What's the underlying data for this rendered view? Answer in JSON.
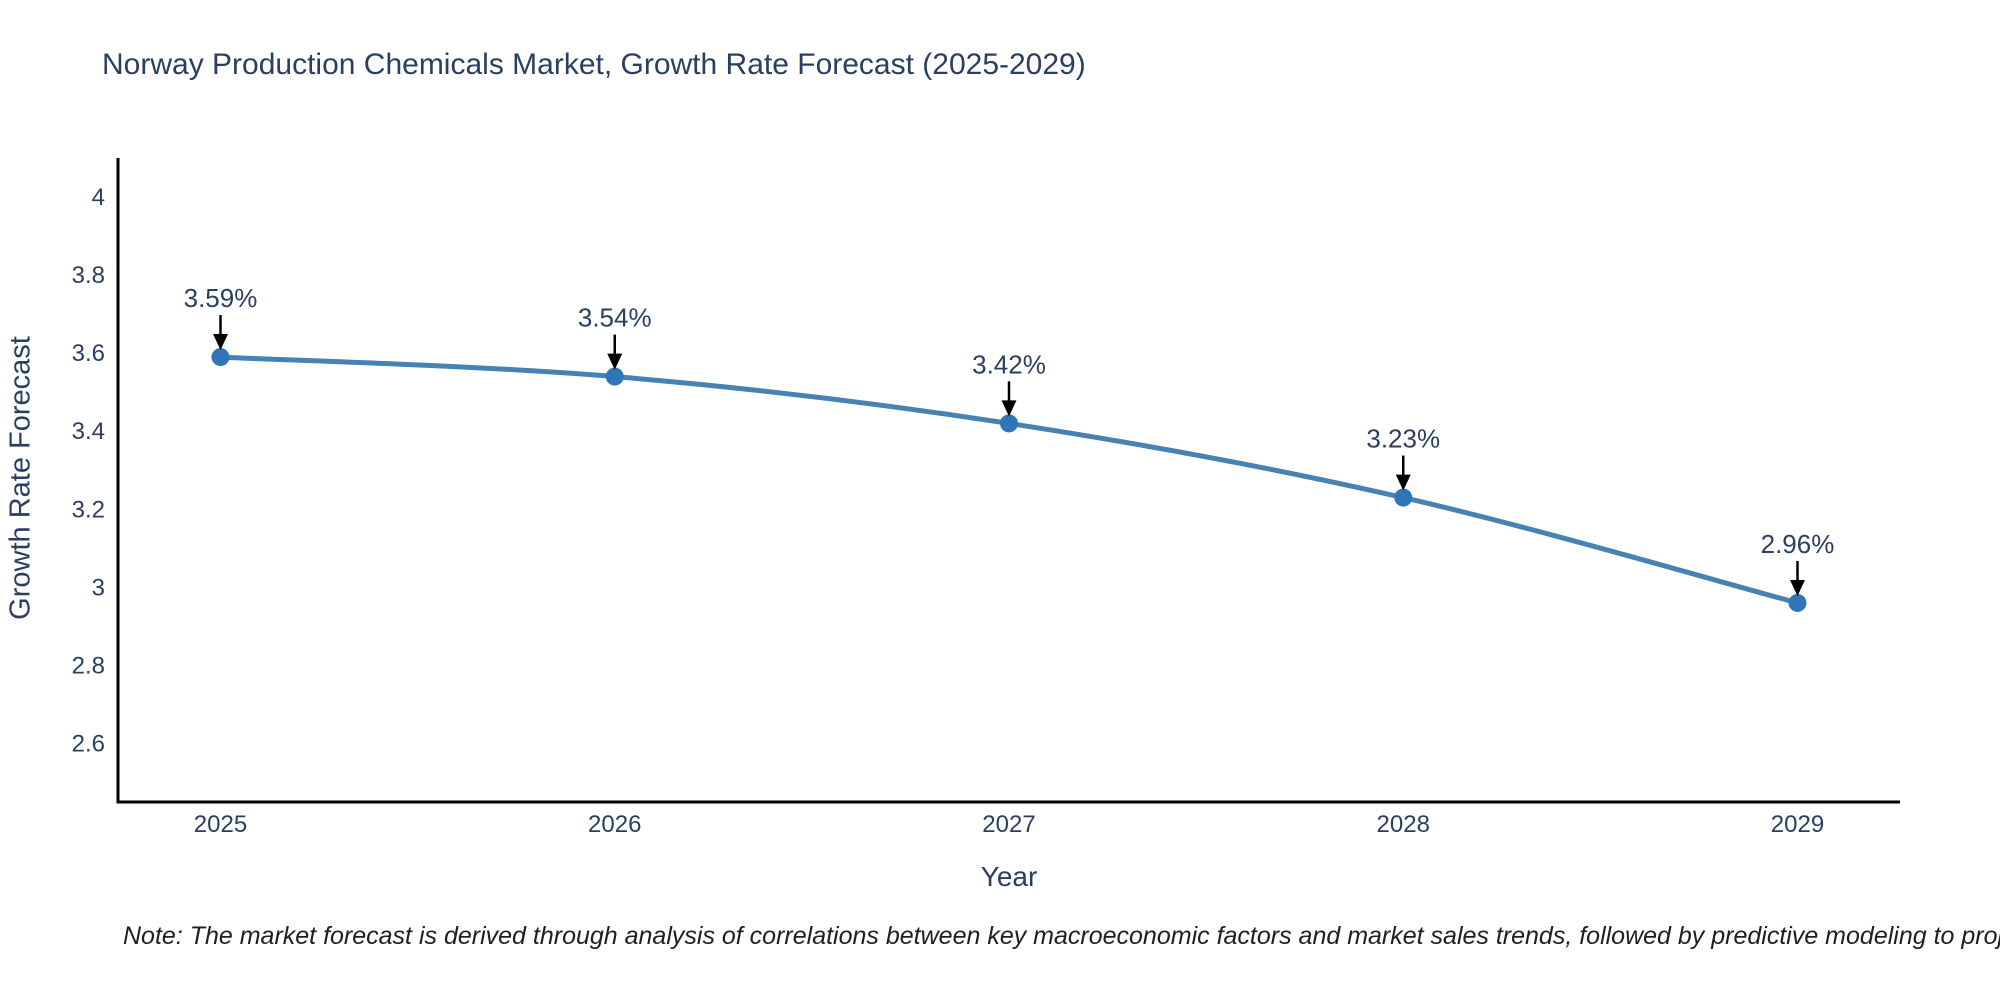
{
  "chart_data": {
    "type": "line",
    "title": "Norway Production Chemicals Market, Growth Rate Forecast (2025-2029)",
    "xlabel": "Year",
    "ylabel": "Growth Rate Forecast",
    "note": "Note: The market forecast is derived through analysis of correlations between key macroeconomic factors and market sales trends, followed by predictive modeling to project future sales",
    "x": [
      2025,
      2026,
      2027,
      2028,
      2029
    ],
    "values": [
      3.59,
      3.54,
      3.42,
      3.23,
      2.96
    ],
    "point_labels": [
      "3.59%",
      "3.54%",
      "3.42%",
      "3.23%",
      "2.96%"
    ],
    "x_tick_labels": [
      "2025",
      "2026",
      "2027",
      "2028",
      "2029"
    ],
    "y_ticks": [
      4,
      3.8,
      3.6,
      3.4,
      3.2,
      3,
      2.8,
      2.6
    ],
    "y_tick_labels": [
      "4",
      "3.8",
      "3.6",
      "3.4",
      "3.2",
      "3",
      "2.8",
      "2.6"
    ],
    "xlim": [
      2024.74,
      2029.26
    ],
    "ylim": [
      2.45,
      4.1
    ],
    "grid": false,
    "legend": false,
    "line_shape": "spline",
    "colors": {
      "line": "#4682b4",
      "marker": "#2e76b5",
      "arrow": "#000000",
      "axis": "#000000",
      "text": "#2a3f5f"
    }
  }
}
